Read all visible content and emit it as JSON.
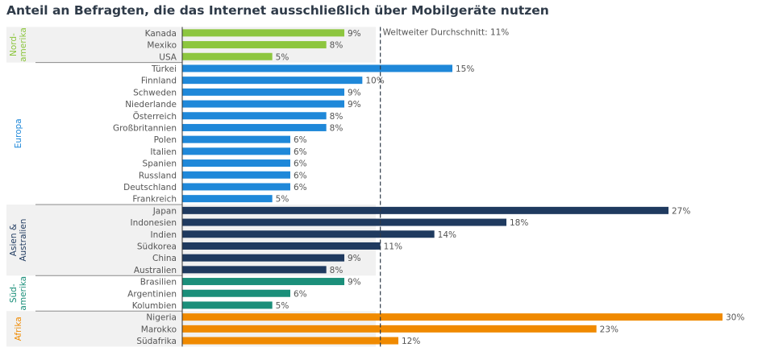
{
  "chart_data": {
    "type": "bar",
    "orientation": "horizontal",
    "title": "Anteil an Befragten, die das Internet ausschließlich über Mobilgeräte nutzen",
    "value_suffix": "%",
    "xlim": [
      0,
      30
    ],
    "reference_line": {
      "value": 11,
      "label": "Weltweiter Durchschnitt: 11%"
    },
    "groups": [
      {
        "name": "Nord-\namerika",
        "color": "#8dc63f",
        "shaded": true,
        "categories": [
          "Kanada",
          "Mexiko",
          "USA"
        ],
        "values": [
          9,
          8,
          5
        ]
      },
      {
        "name": "Europa",
        "color": "#1f88d9",
        "shaded": false,
        "categories": [
          "Türkei",
          "Finnland",
          "Schweden",
          "Niederlande",
          "Österreich",
          "Großbritannien",
          "Polen",
          "Italien",
          "Spanien",
          "Russland",
          "Deutschland",
          "Frankreich"
        ],
        "values": [
          15,
          10,
          9,
          9,
          8,
          8,
          6,
          6,
          6,
          6,
          6,
          5
        ]
      },
      {
        "name": "Asien &\nAustralien",
        "color": "#1f3a5f",
        "label_color": "#1f3a5f",
        "shaded": true,
        "categories": [
          "Japan",
          "Indonesien",
          "Indien",
          "Südkorea",
          "China",
          "Australien"
        ],
        "values": [
          27,
          18,
          14,
          11,
          9,
          8
        ]
      },
      {
        "name": "Süd-\namerika",
        "color": "#1b8f7a",
        "shaded": false,
        "categories": [
          "Brasilien",
          "Argentinien",
          "Kolumbien"
        ],
        "values": [
          9,
          6,
          5
        ]
      },
      {
        "name": "Afrika",
        "color": "#f08a00",
        "shaded": true,
        "categories": [
          "Nigeria",
          "Marokko",
          "Südafrika"
        ],
        "values": [
          30,
          23,
          12
        ]
      }
    ]
  }
}
